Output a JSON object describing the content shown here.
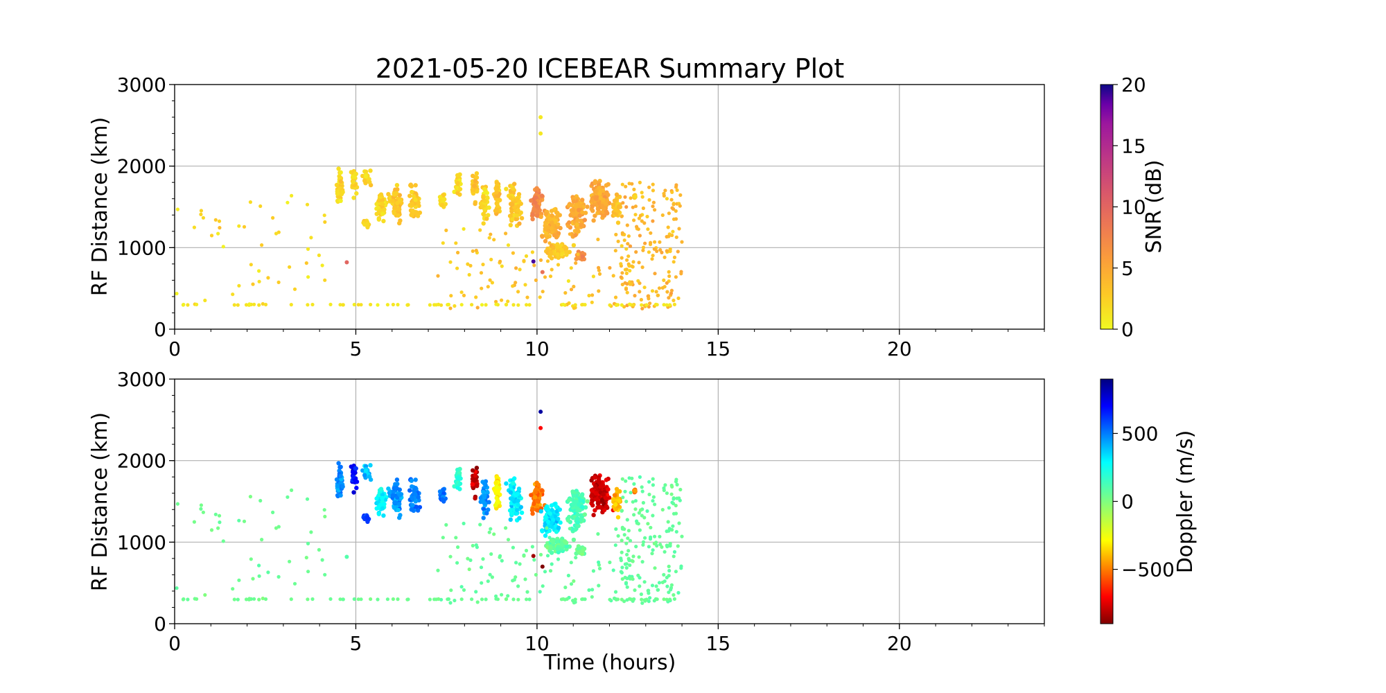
{
  "figure": {
    "title": "2021-05-20 ICEBEAR Summary Plot"
  },
  "chart_data": [
    {
      "type": "scatter",
      "title": "2021-05-20 ICEBEAR Summary Plot",
      "xlabel": "",
      "ylabel": "RF Distance (km)",
      "xlim": [
        0,
        24
      ],
      "ylim": [
        0,
        3000
      ],
      "xticks": [
        "0",
        "5",
        "10",
        "15",
        "20"
      ],
      "yticks": [
        "0",
        "1000",
        "2000",
        "3000"
      ],
      "grid": true,
      "color_by": "snr",
      "colorbar": {
        "label": "SNR (dB)",
        "range": [
          0,
          20
        ],
        "ticks": [
          "0",
          "5",
          "10",
          "15",
          "20"
        ],
        "colormap": "plasma_r"
      }
    },
    {
      "type": "scatter",
      "title": "",
      "xlabel": "Time (hours)",
      "ylabel": "RF Distance (km)",
      "xlim": [
        0,
        24
      ],
      "ylim": [
        0,
        3000
      ],
      "xticks": [
        "0",
        "5",
        "10",
        "15",
        "20"
      ],
      "yticks": [
        "0",
        "1000",
        "2000",
        "3000"
      ],
      "grid": true,
      "color_by": "doppler",
      "colorbar": {
        "label": "Doppler (m/s)",
        "range": [
          -900,
          900
        ],
        "ticks": [
          "−500",
          "0",
          "500"
        ],
        "tick_values": [
          -500,
          0,
          500
        ],
        "colormap": "jet_r"
      }
    }
  ],
  "clusters": [
    {
      "x": 4.55,
      "y": 1750,
      "dx": 0.15,
      "dy": 300,
      "n": 40,
      "snr": 2,
      "doppler": 480
    },
    {
      "x": 4.95,
      "y": 1800,
      "dx": 0.12,
      "dy": 200,
      "n": 30,
      "snr": 2,
      "doppler": 720
    },
    {
      "x": 5.3,
      "y": 1850,
      "dx": 0.15,
      "dy": 150,
      "n": 20,
      "snr": 2,
      "doppler": 400
    },
    {
      "x": 5.3,
      "y": 1300,
      "dx": 0.15,
      "dy": 100,
      "n": 12,
      "snr": 2,
      "doppler": 600
    },
    {
      "x": 5.7,
      "y": 1500,
      "dx": 0.18,
      "dy": 280,
      "n": 45,
      "snr": 2,
      "doppler": 300
    },
    {
      "x": 6.1,
      "y": 1550,
      "dx": 0.25,
      "dy": 300,
      "n": 60,
      "snr": 3,
      "doppler": 450
    },
    {
      "x": 6.6,
      "y": 1550,
      "dx": 0.2,
      "dy": 300,
      "n": 50,
      "snr": 3,
      "doppler": 500
    },
    {
      "x": 7.4,
      "y": 1550,
      "dx": 0.12,
      "dy": 150,
      "n": 20,
      "snr": 2,
      "doppler": 520
    },
    {
      "x": 7.8,
      "y": 1750,
      "dx": 0.15,
      "dy": 200,
      "n": 25,
      "snr": 2,
      "doppler": 200
    },
    {
      "x": 8.3,
      "y": 1750,
      "dx": 0.12,
      "dy": 250,
      "n": 30,
      "snr": 3,
      "doppler": -800
    },
    {
      "x": 8.55,
      "y": 1550,
      "dx": 0.15,
      "dy": 300,
      "n": 40,
      "snr": 2,
      "doppler": 480
    },
    {
      "x": 8.9,
      "y": 1600,
      "dx": 0.12,
      "dy": 350,
      "n": 40,
      "snr": 3,
      "doppler": -300
    },
    {
      "x": 9.4,
      "y": 1500,
      "dx": 0.3,
      "dy": 350,
      "n": 70,
      "snr": 3,
      "doppler": 320
    },
    {
      "x": 10.0,
      "y": 1550,
      "dx": 0.25,
      "dy": 250,
      "n": 80,
      "snr": 7,
      "doppler": -500
    },
    {
      "x": 10.4,
      "y": 1300,
      "dx": 0.35,
      "dy": 300,
      "n": 90,
      "snr": 4,
      "doppler": 320
    },
    {
      "x": 10.6,
      "y": 950,
      "dx": 0.5,
      "dy": 120,
      "n": 60,
      "snr": 3,
      "doppler": 80
    },
    {
      "x": 11.1,
      "y": 1400,
      "dx": 0.35,
      "dy": 350,
      "n": 100,
      "snr": 5,
      "doppler": 120
    },
    {
      "x": 11.2,
      "y": 900,
      "dx": 0.2,
      "dy": 100,
      "n": 25,
      "snr": 7,
      "doppler": 60
    },
    {
      "x": 11.75,
      "y": 1600,
      "dx": 0.4,
      "dy": 350,
      "n": 120,
      "snr": 5,
      "doppler": -780
    },
    {
      "x": 12.2,
      "y": 1500,
      "dx": 0.15,
      "dy": 250,
      "n": 30,
      "snr": 3,
      "doppler": -400
    },
    {
      "x": 12.7,
      "y": 1630,
      "dx": 0.05,
      "dy": 40,
      "n": 6,
      "snr": 3,
      "doppler": -480
    }
  ],
  "scatter": [
    {
      "x0": 0,
      "x1": 4.2,
      "y0": 300,
      "y1": 1650,
      "n": 45,
      "snr": 2,
      "doppler": 40
    },
    {
      "x0": 7.2,
      "x1": 12.6,
      "y0": 250,
      "y1": 1250,
      "n": 110,
      "snr": 3,
      "doppler": 60
    },
    {
      "x0": 12.3,
      "x1": 14,
      "y0": 250,
      "y1": 1800,
      "n": 170,
      "snr": 4,
      "doppler": 60
    }
  ],
  "ground_line": {
    "y": 300,
    "x0": 0,
    "x1": 13.8,
    "n": 70,
    "snr": 1,
    "doppler": 40
  },
  "outliers": [
    {
      "x": 10.1,
      "y": 2600,
      "snr": 1,
      "doppler": 850
    },
    {
      "x": 10.1,
      "y": 2400,
      "snr": 1,
      "doppler": -700
    },
    {
      "x": 9.9,
      "y": 830,
      "snr": 19,
      "doppler": -850
    },
    {
      "x": 10.15,
      "y": 700,
      "snr": 9,
      "doppler": -900
    },
    {
      "x": 4.75,
      "y": 820,
      "snr": 10,
      "doppler": 100
    }
  ]
}
